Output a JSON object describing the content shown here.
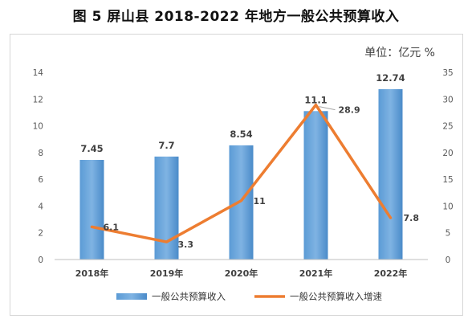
{
  "figure": {
    "title": "图 5   屏山县 2018-2022 年地方一般公共预算收入",
    "unit_label": "单位：亿元 %"
  },
  "chart_data": {
    "type": "bar",
    "title": "图 5   屏山县 2018-2022 年地方一般公共预算收入",
    "categories": [
      "2018年",
      "2019年",
      "2020年",
      "2021年",
      "2022年"
    ],
    "series": [
      {
        "name": "一般公共预算收入",
        "type": "bar",
        "axis": "left",
        "color": "#5B9BD5",
        "values": [
          7.45,
          7.7,
          8.54,
          11.1,
          12.74
        ],
        "labels": [
          "7.45",
          "7.7",
          "8.54",
          "11.1",
          "12.74"
        ]
      },
      {
        "name": "一般公共预算收入增速",
        "type": "line",
        "axis": "right",
        "color": "#ED7D31",
        "values": [
          6.1,
          3.3,
          11,
          28.9,
          7.8
        ],
        "labels": [
          "6.1",
          "3.3",
          "11",
          "28.9",
          "7.8"
        ]
      }
    ],
    "y_left": {
      "min": 0,
      "max": 14,
      "ticks": [
        0,
        2,
        4,
        6,
        8,
        10,
        12,
        14
      ]
    },
    "y_right": {
      "min": 0,
      "max": 35,
      "ticks": [
        0,
        5,
        10,
        15,
        20,
        25,
        30,
        35
      ]
    },
    "grid": false,
    "legend_position": "bottom"
  }
}
